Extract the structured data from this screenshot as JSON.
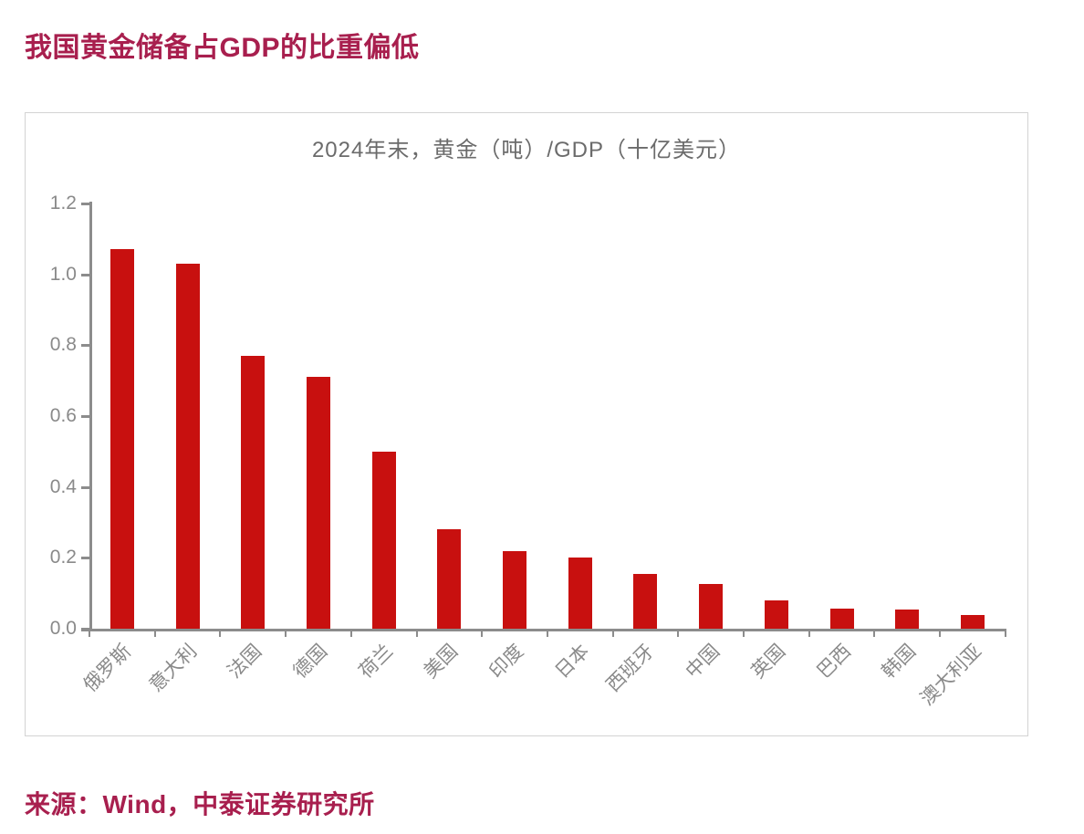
{
  "page": {
    "title": "我国黄金储备占GDP的比重偏低",
    "source": "来源：Wind，中泰证券研究所"
  },
  "colors": {
    "accent": "#A81F4E",
    "bar": "#C8100F",
    "axis": "#8C8C8C",
    "tick_label": "#8A8A8A",
    "chart_title": "#6B6B6B",
    "panel_border": "#D3D3D3",
    "page_bg": "#FFFFFF"
  },
  "chart_data": {
    "type": "bar",
    "title": "2024年末，黄金（吨）/GDP（十亿美元）",
    "categories": [
      "俄罗斯",
      "意大利",
      "法国",
      "德国",
      "荷兰",
      "美国",
      "印度",
      "日本",
      "西班牙",
      "中国",
      "英国",
      "巴西",
      "韩国",
      "澳大利亚"
    ],
    "values": [
      1.07,
      1.03,
      0.77,
      0.71,
      0.5,
      0.28,
      0.22,
      0.2,
      0.155,
      0.125,
      0.08,
      0.057,
      0.053,
      0.038
    ],
    "xlabel": "",
    "ylabel": "",
    "ylim": [
      0,
      1.2
    ],
    "ytick_labels": [
      "0.0",
      "0.2",
      "0.4",
      "0.6",
      "0.8",
      "1.0",
      "1.2"
    ],
    "grid": false,
    "legend": null,
    "xlabel_rotation_deg": 45,
    "bar_color": "#C8100F"
  }
}
